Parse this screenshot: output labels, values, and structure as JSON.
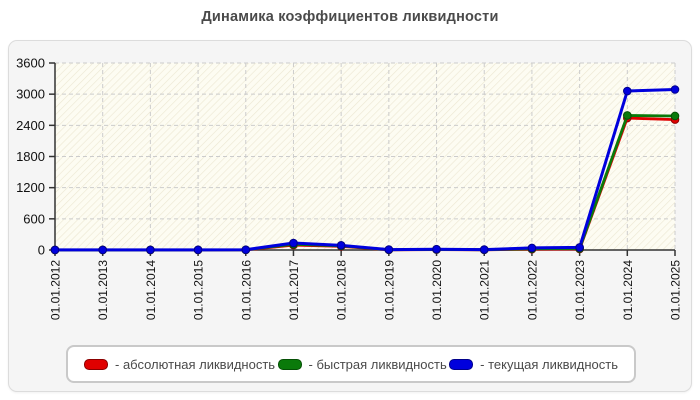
{
  "title": "Динамика коэффициентов ликвидности",
  "chart_data": {
    "type": "line",
    "title": "Динамика коэффициентов ликвидности",
    "categories": [
      "01.01.2012",
      "01.01.2013",
      "01.01.2014",
      "01.01.2015",
      "01.01.2016",
      "01.01.2017",
      "01.01.2018",
      "01.01.2019",
      "01.01.2020",
      "01.01.2021",
      "01.01.2022",
      "01.01.2023",
      "01.01.2024",
      "01.01.2025"
    ],
    "series": [
      {
        "name": "абсолютная ликвидность",
        "legend_label": "- абсолютная ликвидность",
        "color": "#e00000",
        "edge_color": "#8b0000",
        "values": [
          1,
          1,
          1,
          1,
          2,
          95,
          70,
          4,
          8,
          4,
          15,
          20,
          2540,
          2510
        ]
      },
      {
        "name": "быстрая ликвидность",
        "legend_label": "- быстрая ликвидность",
        "color": "#0a7a0a",
        "edge_color": "#055005",
        "values": [
          1,
          1,
          1,
          2,
          3,
          110,
          80,
          5,
          10,
          5,
          25,
          30,
          2590,
          2580
        ]
      },
      {
        "name": "текущая ликвидность",
        "legend_label": "- текущая ликвидность",
        "color": "#0000dd",
        "edge_color": "#00008b",
        "values": [
          2,
          2,
          2,
          3,
          5,
          135,
          90,
          8,
          15,
          8,
          40,
          50,
          3060,
          3090
        ]
      }
    ],
    "xlabel": "",
    "ylabel": "",
    "ylim": [
      0,
      3600
    ],
    "ytick_step": 600,
    "yticks": [
      0,
      600,
      1200,
      1800,
      2400,
      3000,
      3600
    ],
    "grid": true,
    "grid_style": "dashed",
    "legend_position": "bottom",
    "x_label_rotation": -90
  },
  "style_colors": {
    "grid": "#cccccc",
    "axis": "#333333",
    "plot_bg": "#fdfcf2",
    "plot_hatch": "#ece7d2",
    "panel_bg": "#f5f5f5",
    "title": "#4a4a4a"
  }
}
